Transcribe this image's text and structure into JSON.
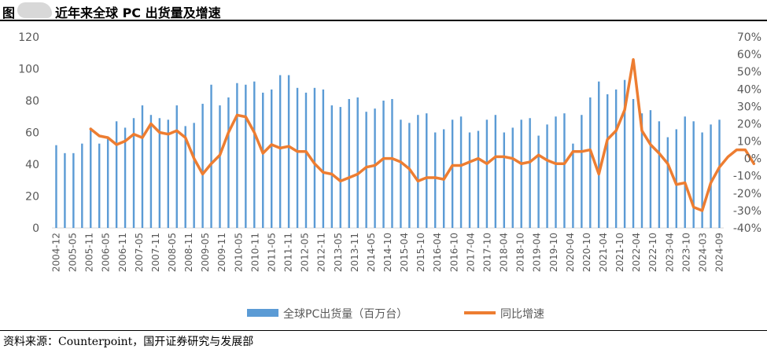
{
  "figure": {
    "label": "图",
    "title": "近年来全球 PC 出货量及增速",
    "source": "资料来源：Counterpoint，国开证券研究与发展部"
  },
  "colors": {
    "bar": "#5b9bd5",
    "line": "#ed7d31",
    "axis": "#d9d9d9",
    "text": "#595959"
  },
  "chart_data": {
    "type": "bar+line",
    "x_ticks": [
      "2004-12",
      "2005-05",
      "2005-11",
      "2006-05",
      "2006-11",
      "2007-05",
      "2007-11",
      "2008-05",
      "2008-11",
      "2009-05",
      "2009-11",
      "2010-05",
      "2010-11",
      "2011-05",
      "2011-11",
      "2012-05",
      "2012-11",
      "2013-05",
      "2013-11",
      "2014-05",
      "2014-10",
      "2015-04",
      "2015-10",
      "2016-04",
      "2016-10",
      "2017-04",
      "2017-10",
      "2018-04",
      "2018-10",
      "2019-04",
      "2019-10",
      "2020-04",
      "2020-10",
      "2021-04",
      "2021-10",
      "2022-04",
      "2022-10",
      "2023-04",
      "2023-10",
      "2024-03",
      "2024-09"
    ],
    "left_axis": {
      "ylim": [
        0,
        120
      ],
      "ticks": [
        "0",
        "20",
        "40",
        "60",
        "80",
        "100",
        "120"
      ]
    },
    "right_axis": {
      "ylim": [
        -40,
        70
      ],
      "ticks": [
        "-40%",
        "-30%",
        "-20%",
        "-10%",
        "0%",
        "10%",
        "20%",
        "30%",
        "40%",
        "50%",
        "60%",
        "70%"
      ]
    },
    "series": [
      {
        "name": "全球PC出货量（百万台）",
        "kind": "bar",
        "axis": "left",
        "values": [
          52,
          47,
          47,
          53,
          63,
          53,
          57,
          67,
          63,
          69,
          77,
          71,
          69,
          68,
          77,
          64,
          66,
          78,
          90,
          77,
          82,
          91,
          90,
          92,
          85,
          87,
          96,
          96,
          88,
          85,
          88,
          87,
          77,
          76,
          81,
          82,
          73,
          75,
          80,
          81,
          68,
          66,
          71,
          72,
          60,
          62,
          68,
          70,
          60,
          61,
          68,
          71,
          60,
          63,
          68,
          69,
          58,
          65,
          70,
          72,
          53,
          71,
          82,
          92,
          84,
          87,
          93,
          81,
          72,
          74,
          67,
          57,
          62,
          70,
          67,
          60,
          65,
          68
        ],
        "unit": "百万台"
      },
      {
        "name": "同比增速",
        "kind": "line",
        "axis": "right",
        "start_index": 4,
        "values": [
          17,
          13,
          12,
          8,
          10,
          14,
          12,
          20,
          15,
          14,
          16,
          12,
          0,
          -9,
          -3,
          2,
          15,
          25,
          24,
          15,
          3,
          8,
          6,
          7,
          4,
          4,
          -3,
          -8,
          -9,
          -13,
          -11,
          -9,
          -5,
          -4,
          0,
          0,
          -2,
          -6,
          -13,
          -11,
          -11,
          -12,
          -4,
          -4,
          -2,
          0,
          -3,
          1,
          1,
          0,
          -3,
          -2,
          2,
          -1,
          -3,
          -3,
          4,
          4,
          5,
          -9,
          11,
          16,
          28,
          57,
          16,
          8,
          3,
          -3,
          -15,
          -14,
          -28,
          -30,
          -14,
          -5,
          1,
          5,
          5,
          -3
        ],
        "unit": "%"
      }
    ],
    "legend": {
      "position": "bottom",
      "entries": [
        "全球PC出货量（百万台）",
        "同比增速"
      ]
    }
  }
}
